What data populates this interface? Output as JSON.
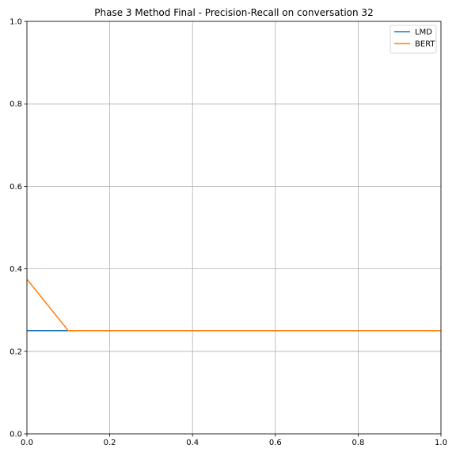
{
  "chart_data": {
    "type": "line",
    "title": "Phase 3 Method Final - Precision-Recall on conversation 32",
    "xlabel": "",
    "ylabel": "",
    "xlim": [
      0.0,
      1.0
    ],
    "ylim": [
      0.0,
      1.0
    ],
    "xticks": [
      "0.0",
      "0.2",
      "0.4",
      "0.6",
      "0.8",
      "1.0"
    ],
    "yticks": [
      "0.0",
      "0.2",
      "0.4",
      "0.6",
      "0.8",
      "1.0"
    ],
    "grid": true,
    "legend_position": "top-right",
    "series": [
      {
        "name": "LMD",
        "color": "#1f77b4",
        "x": [
          0.0,
          0.1,
          1.0
        ],
        "y": [
          0.25,
          0.25,
          0.25
        ]
      },
      {
        "name": "BERT",
        "color": "#ff7f0e",
        "x": [
          0.0,
          0.1,
          1.0
        ],
        "y": [
          0.375,
          0.25,
          0.25
        ]
      }
    ]
  }
}
